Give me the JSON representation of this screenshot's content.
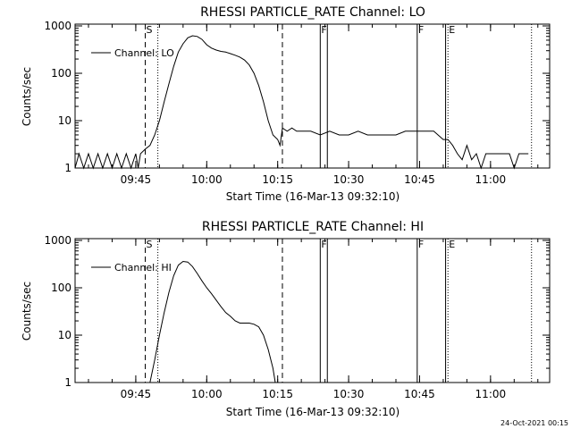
{
  "footer_timestamp": "24-Oct-2021 00:15",
  "chart_data": [
    {
      "type": "line",
      "title": "RHESSI PARTICLE_RATE Channel: LO",
      "xlabel": "Start Time (16-Mar-13 09:32:10)",
      "ylabel": "Counts/sec",
      "y_scale": "log",
      "ylim": [
        1,
        1000
      ],
      "xlim": [
        "09:32:10",
        "11:12:30"
      ],
      "x_ticks": [
        "09:45",
        "10:00",
        "10:15",
        "10:30",
        "10:45",
        "11:00"
      ],
      "y_ticks": [
        "1",
        "10",
        "100",
        "1000"
      ],
      "legend": {
        "placement": "top-left",
        "entries": [
          "Channel: LO"
        ]
      },
      "markers": [
        {
          "label": "S",
          "time": "09:47:00",
          "style": "dashed"
        },
        {
          "label": "",
          "time": "09:49:40",
          "style": "dotted"
        },
        {
          "label": "",
          "time": "10:16:00",
          "style": "dashed"
        },
        {
          "label": "F",
          "time": "10:24:00",
          "style": "solid"
        },
        {
          "label": "",
          "time": "10:25:30",
          "style": "solid"
        },
        {
          "label": "F",
          "time": "10:44:30",
          "style": "solid"
        },
        {
          "label": "",
          "time": "10:50:30",
          "style": "solid"
        },
        {
          "label": "E",
          "time": "10:51:00",
          "style": "dotted"
        },
        {
          "label": "",
          "time": "11:08:40",
          "style": "dotted"
        }
      ],
      "series": [
        {
          "name": "Channel: LO",
          "x": [
            "09:32:10",
            "09:33:00",
            "09:34:00",
            "09:35:00",
            "09:36:00",
            "09:37:00",
            "09:38:00",
            "09:39:00",
            "09:40:00",
            "09:41:00",
            "09:42:00",
            "09:43:00",
            "09:44:00",
            "09:45:00",
            "09:45:30",
            "09:46:00",
            "09:47:00",
            "09:48:00",
            "09:49:00",
            "09:50:00",
            "09:51:00",
            "09:52:00",
            "09:53:00",
            "09:54:00",
            "09:55:00",
            "09:56:00",
            "09:57:00",
            "09:58:00",
            "09:59:00",
            "10:00:00",
            "10:01:00",
            "10:02:00",
            "10:03:00",
            "10:04:00",
            "10:05:00",
            "10:06:00",
            "10:07:00",
            "10:08:00",
            "10:09:00",
            "10:10:00",
            "10:11:00",
            "10:12:00",
            "10:13:00",
            "10:14:00",
            "10:15:00",
            "10:15:30",
            "10:16:00",
            "10:17:00",
            "10:18:00",
            "10:19:00",
            "10:20:00",
            "10:22:00",
            "10:24:00",
            "10:26:00",
            "10:28:00",
            "10:30:00",
            "10:32:00",
            "10:34:00",
            "10:36:00",
            "10:38:00",
            "10:40:00",
            "10:42:00",
            "10:44:00",
            "10:46:00",
            "10:48:00",
            "10:50:00",
            "10:51:00",
            "10:52:00",
            "10:53:00",
            "10:54:00",
            "10:55:00",
            "10:56:00",
            "10:57:00",
            "10:58:00",
            "10:59:00",
            "11:00:00",
            "11:01:00",
            "11:02:00",
            "11:03:00",
            "11:04:00",
            "11:05:00",
            "11:06:00",
            "11:07:00",
            "11:08:00"
          ],
          "y": [
            1,
            2,
            1,
            2,
            1,
            2,
            1,
            2,
            1,
            2,
            1,
            2,
            1,
            2,
            1,
            2,
            2.5,
            3,
            5,
            10,
            25,
            60,
            140,
            280,
            420,
            560,
            620,
            600,
            520,
            400,
            340,
            310,
            290,
            280,
            260,
            240,
            220,
            190,
            150,
            100,
            55,
            25,
            10,
            5,
            4,
            3,
            7,
            6,
            7,
            6,
            6,
            6,
            5,
            6,
            5,
            5,
            6,
            5,
            5,
            5,
            5,
            6,
            6,
            6,
            6,
            4,
            4,
            3,
            2,
            1.5,
            3,
            1.5,
            2,
            1,
            2,
            2,
            2,
            2,
            2,
            2,
            1,
            2,
            2,
            2
          ]
        }
      ]
    },
    {
      "type": "line",
      "title": "RHESSI PARTICLE_RATE Channel: HI",
      "xlabel": "Start Time (16-Mar-13 09:32:10)",
      "ylabel": "Counts/sec",
      "y_scale": "log",
      "ylim": [
        1,
        1000
      ],
      "xlim": [
        "09:32:10",
        "11:12:30"
      ],
      "x_ticks": [
        "09:45",
        "10:00",
        "10:15",
        "10:30",
        "10:45",
        "11:00"
      ],
      "y_ticks": [
        "1",
        "10",
        "100",
        "1000"
      ],
      "legend": {
        "placement": "top-left",
        "entries": [
          "Channel: HI"
        ]
      },
      "markers": [
        {
          "label": "S",
          "time": "09:47:00",
          "style": "dashed"
        },
        {
          "label": "",
          "time": "09:49:40",
          "style": "dotted"
        },
        {
          "label": "",
          "time": "10:16:00",
          "style": "dashed"
        },
        {
          "label": "F",
          "time": "10:24:00",
          "style": "solid"
        },
        {
          "label": "",
          "time": "10:25:30",
          "style": "solid"
        },
        {
          "label": "F",
          "time": "10:44:30",
          "style": "solid"
        },
        {
          "label": "",
          "time": "10:50:30",
          "style": "solid"
        },
        {
          "label": "E",
          "time": "10:51:00",
          "style": "dotted"
        },
        {
          "label": "",
          "time": "11:08:40",
          "style": "dotted"
        }
      ],
      "series": [
        {
          "name": "Channel: HI",
          "x": [
            "09:48:00",
            "09:49:00",
            "09:50:00",
            "09:51:00",
            "09:52:00",
            "09:53:00",
            "09:54:00",
            "09:55:00",
            "09:56:00",
            "09:57:00",
            "09:58:00",
            "09:59:00",
            "10:00:00",
            "10:01:00",
            "10:02:00",
            "10:03:00",
            "10:04:00",
            "10:05:00",
            "10:06:00",
            "10:07:00",
            "10:08:00",
            "10:09:00",
            "10:10:00",
            "10:11:00",
            "10:12:00",
            "10:13:00",
            "10:14:00",
            "10:14:30"
          ],
          "y": [
            1,
            3,
            10,
            30,
            80,
            180,
            300,
            360,
            350,
            280,
            200,
            140,
            100,
            75,
            55,
            40,
            30,
            25,
            20,
            18,
            18,
            18,
            17,
            15,
            10,
            5,
            2,
            1
          ]
        }
      ]
    }
  ]
}
